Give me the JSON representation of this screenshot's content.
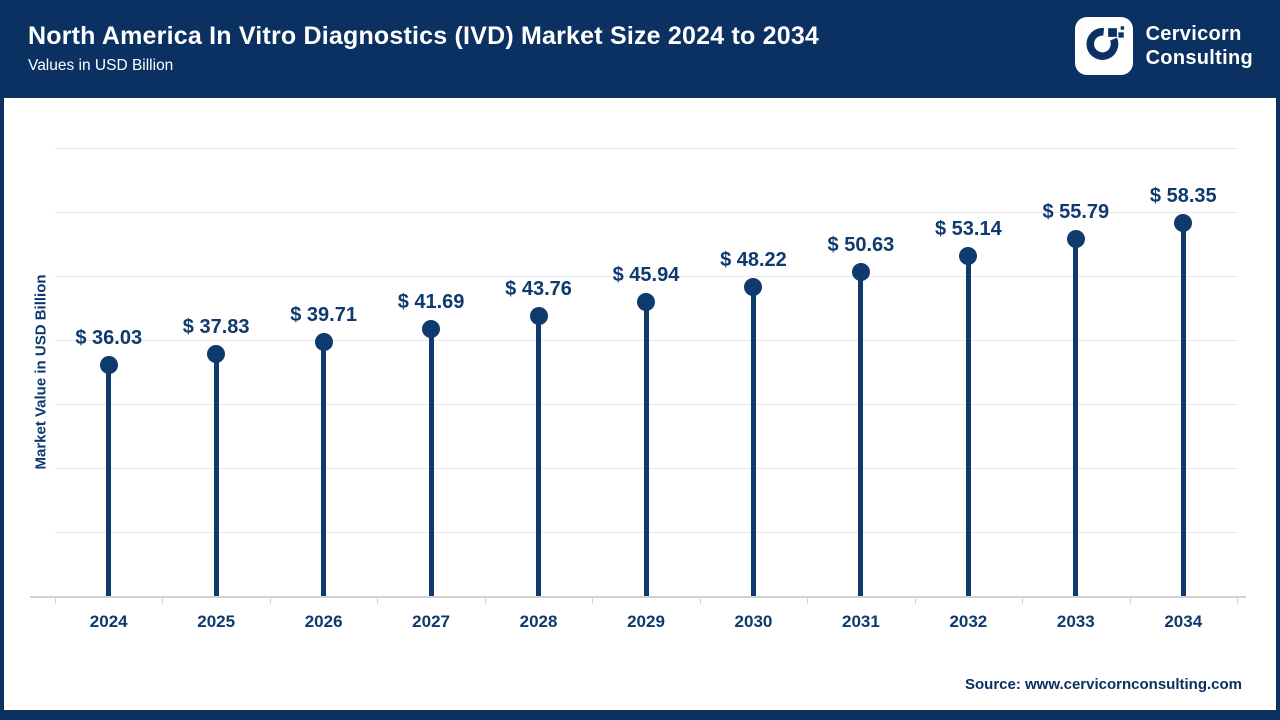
{
  "header": {
    "title": "North America In Vitro Diagnostics (IVD) Market Size 2024 to 2034",
    "subtitle": "Values in USD Billion",
    "logo": {
      "icon": "cervicorn-c-logo",
      "line1": "Cervicorn",
      "line2": "Consulting"
    }
  },
  "chart_data": {
    "type": "bar",
    "variant": "lollipop",
    "title": "North America In Vitro Diagnostics (IVD) Market Size 2024 to 2034",
    "subtitle": "Values in USD Billion",
    "categories": [
      "2024",
      "2025",
      "2026",
      "2027",
      "2028",
      "2029",
      "2030",
      "2031",
      "2032",
      "2033",
      "2034"
    ],
    "values": [
      36.03,
      37.83,
      39.71,
      41.69,
      43.76,
      45.94,
      48.22,
      50.63,
      53.14,
      55.79,
      58.35
    ],
    "value_labels": [
      "$ 36.03",
      "$ 37.83",
      "$ 39.71",
      "$ 41.69",
      "$ 43.76",
      "$ 45.94",
      "$ 48.22",
      "$ 50.63",
      "$ 53.14",
      "$ 55.79",
      "$ 58.35"
    ],
    "xlabel": "",
    "ylabel": "Market Value in USD Billion",
    "ylim": [
      0,
      70
    ],
    "gridline_step": 10,
    "grid": "horizontal gridlines only, no y-axis tick labels",
    "legend": "none"
  },
  "footer": {
    "source": "Source: www.cervicornconsulting.com"
  },
  "colors": {
    "navy": "#0b3162",
    "accent": "#0e3a6e",
    "gridline": "#e8e8e8",
    "axis_line": "#d2d2d2",
    "logo_bg": "#ffffff",
    "title_text": "#ffffff"
  }
}
